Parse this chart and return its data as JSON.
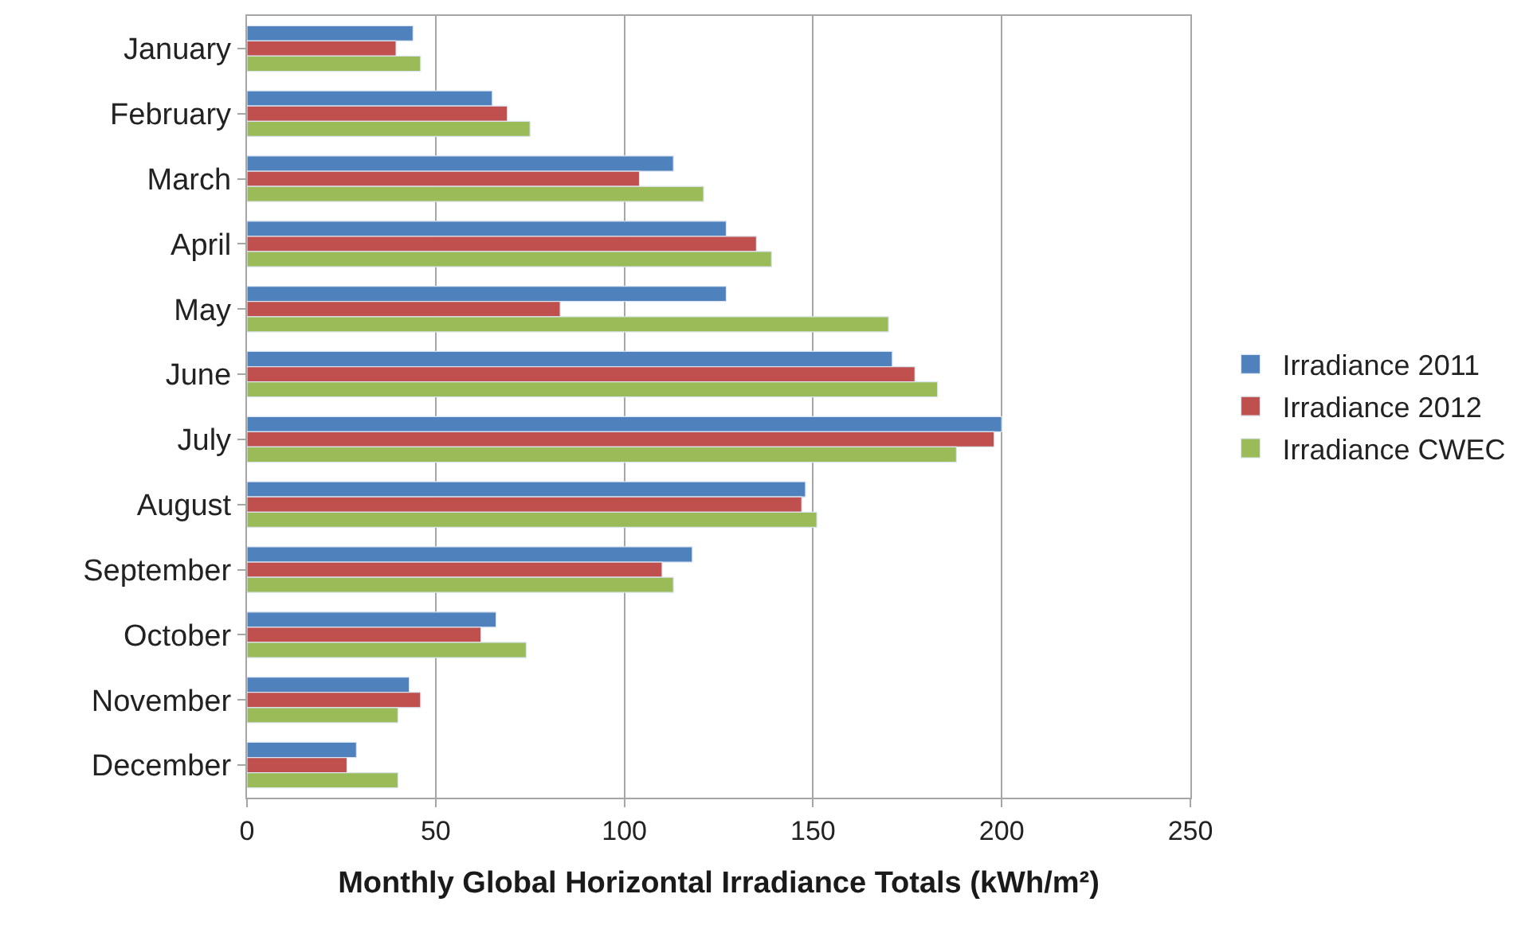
{
  "chart_data": {
    "type": "bar",
    "orientation": "horizontal",
    "xlabel": "Monthly Global Horizontal Irradiance Totals (kWh/m²)",
    "categories": [
      "January",
      "February",
      "March",
      "April",
      "May",
      "June",
      "July",
      "August",
      "September",
      "October",
      "November",
      "December"
    ],
    "series": [
      {
        "name": "Irradiance 2011",
        "color": "#4f81bd",
        "values": [
          44,
          65,
          113,
          127,
          127,
          171,
          200,
          148,
          118,
          66,
          43,
          29
        ]
      },
      {
        "name": "Irradiance 2012",
        "color": "#c0504d",
        "values": [
          39.5,
          69,
          104,
          135,
          83,
          177,
          198,
          147,
          110,
          62,
          46,
          26.5
        ]
      },
      {
        "name": "Irradiance CWEC",
        "color": "#9bbb59",
        "values": [
          46,
          75,
          121,
          139,
          170,
          183,
          188,
          151,
          113,
          74,
          40,
          40
        ]
      }
    ],
    "xlim": [
      0,
      250
    ],
    "xticks": [
      0,
      50,
      100,
      150,
      200,
      250
    ],
    "grid": "x",
    "legend": "right"
  }
}
